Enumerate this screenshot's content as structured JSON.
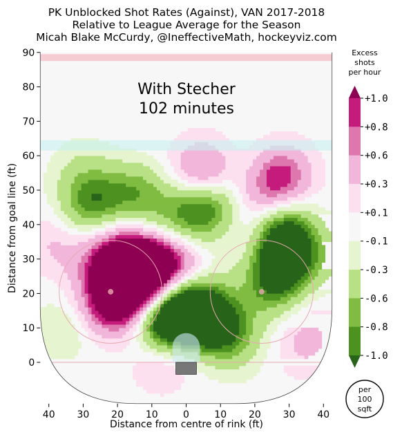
{
  "chart_data": {
    "type": "heatmap",
    "title": "PK Unblocked Shot Rates (Against), VAN 2017-2018",
    "subtitle": "Relative to League Average for the Season",
    "credit": "Micah Blake McCurdy, @IneffectiveMath, hockeyviz.com",
    "annotation": "With Stecher",
    "annotation_minutes": "102 minutes",
    "xlabel": "Distance from centre of rink (ft)",
    "ylabel": "Distance from goal line (ft)",
    "xlim": [
      -42.5,
      42.5
    ],
    "ylim": [
      -12,
      90
    ],
    "x_ticks": [
      -40,
      -30,
      -20,
      -10,
      0,
      10,
      20,
      30,
      40
    ],
    "x_tick_labels": [
      "40",
      "30",
      "20",
      "10",
      "0",
      "10",
      "20",
      "30",
      "40"
    ],
    "y_ticks": [
      0,
      10,
      20,
      30,
      40,
      50,
      60,
      70,
      80,
      90
    ],
    "y_tick_labels": [
      "0",
      "10",
      "20",
      "30",
      "40",
      "50",
      "60",
      "70",
      "80",
      "90"
    ],
    "colorbar": {
      "title_lines": [
        "Excess",
        "shots",
        "per hour"
      ],
      "tick_labels": [
        "+1.0",
        "+0.8",
        "+0.6",
        "+0.3",
        "+0.1",
        "-0.1",
        "-0.3",
        "-0.6",
        "-0.8",
        "-1.0"
      ],
      "levels": [
        1.0,
        0.8,
        0.6,
        0.3,
        0.1,
        -0.1,
        -0.3,
        -0.6,
        -0.8,
        -1.0
      ],
      "colors": [
        "#8e0152",
        "#c51b7d",
        "#de77ae",
        "#f1b6da",
        "#fde0ef",
        "#f7f7f7",
        "#e6f5d0",
        "#b8e186",
        "#7fbc41",
        "#4d9221",
        "#276419"
      ]
    },
    "unit_badge": [
      "per",
      "100",
      "sqft"
    ],
    "series": [
      {
        "x": -18,
        "y": 28,
        "value": 1.1
      },
      {
        "x": -13,
        "y": 29,
        "value": 1.0
      },
      {
        "x": -6,
        "y": 27,
        "value": 0.9
      },
      {
        "x": -19,
        "y": 18,
        "value": 0.9
      },
      {
        "x": -23,
        "y": 16,
        "value": 0.5
      },
      {
        "x": -25,
        "y": 35,
        "value": 0.4
      },
      {
        "x": 3,
        "y": 26,
        "value": 0.5
      },
      {
        "x": -15,
        "y": 22,
        "value": 0.6
      },
      {
        "x": 27,
        "y": 54,
        "value": 1.0
      },
      {
        "x": 22,
        "y": 48,
        "value": 0.4
      },
      {
        "x": 5,
        "y": 55,
        "value": 0.8
      },
      {
        "x": -15,
        "y": 57,
        "value": 0.2
      },
      {
        "x": -37,
        "y": 35,
        "value": 0.4
      },
      {
        "x": -26,
        "y": 26,
        "value": 0.2
      },
      {
        "x": 34,
        "y": 5,
        "value": 0.3
      },
      {
        "x": 37,
        "y": 11,
        "value": 0.15
      },
      {
        "x": -7,
        "y": 1,
        "value": 0.4
      },
      {
        "x": 16,
        "y": 35,
        "value": 0.3
      },
      {
        "x": 20,
        "y": 40,
        "value": 0.1
      },
      {
        "x": -1,
        "y": 14,
        "value": -1.1
      },
      {
        "x": 8,
        "y": 12,
        "value": -1.0
      },
      {
        "x": -7,
        "y": 11,
        "value": -1.0
      },
      {
        "x": 2,
        "y": 20,
        "value": -0.8
      },
      {
        "x": 14,
        "y": 6,
        "value": -0.5
      },
      {
        "x": 7,
        "y": 45,
        "value": -0.9
      },
      {
        "x": -1,
        "y": 43,
        "value": -0.5
      },
      {
        "x": -27,
        "y": 46,
        "value": -0.8
      },
      {
        "x": -30,
        "y": 38,
        "value": -0.3
      },
      {
        "x": -14,
        "y": 50,
        "value": -0.6
      },
      {
        "x": -16,
        "y": 55,
        "value": -0.2
      },
      {
        "x": 28,
        "y": 39,
        "value": -0.9
      },
      {
        "x": 27,
        "y": 28,
        "value": -0.9
      },
      {
        "x": 30,
        "y": 33,
        "value": -0.5
      },
      {
        "x": 25,
        "y": 20,
        "value": -0.5
      },
      {
        "x": -30,
        "y": 55,
        "value": -0.3
      },
      {
        "x": 20,
        "y": 55,
        "value": -0.3
      },
      {
        "x": 38,
        "y": 30,
        "value": -0.3
      },
      {
        "x": -35,
        "y": 10,
        "value": -0.3
      },
      {
        "x": 10,
        "y": 30,
        "value": -0.3
      },
      {
        "x": -10,
        "y": 40,
        "value": -0.2
      }
    ]
  }
}
